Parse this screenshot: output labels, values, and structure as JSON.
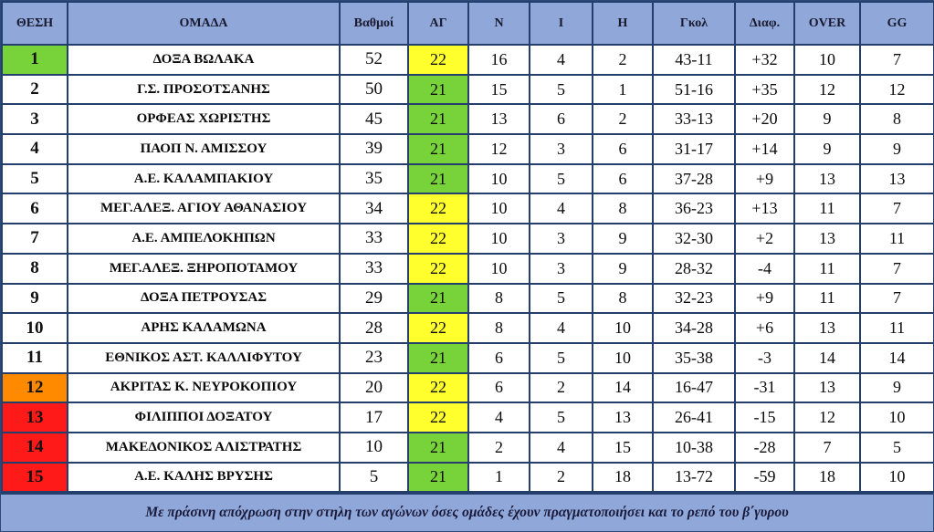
{
  "headers": {
    "pos": "ΘΕΣΗ",
    "team": "ΟΜΑΔΑ",
    "points": "Βαθμοί",
    "games": "ΑΓ",
    "wins": "Ν",
    "draws": "Ι",
    "losses": "Η",
    "goals": "Γκολ",
    "diff": "Διαφ.",
    "over": "OVER",
    "gg": "GG"
  },
  "colors": {
    "header_bg": "#8fa7d9",
    "games_yellow": "#ffff2e",
    "games_green": "#78d33a",
    "pos_green": "#78d33a",
    "pos_orange": "#ff8a00",
    "pos_red": "#ff1a1a"
  },
  "rows": [
    {
      "pos": "1",
      "team": "ΔΟΞΑ ΒΩΛΑΚΑ",
      "points": "52",
      "games": "22",
      "wins": "16",
      "draws": "4",
      "losses": "2",
      "goals": "43-11",
      "diff": "+32",
      "over": "10",
      "gg": "7",
      "games_color": "yellow",
      "pos_color": "green"
    },
    {
      "pos": "2",
      "team": "Γ.Σ. ΠΡΟΣΟΤΣΑΝΗΣ",
      "points": "50",
      "games": "21",
      "wins": "15",
      "draws": "5",
      "losses": "1",
      "goals": "51-16",
      "diff": "+35",
      "over": "12",
      "gg": "12",
      "games_color": "green",
      "pos_color": ""
    },
    {
      "pos": "3",
      "team": "ΟΡΦΕΑΣ ΧΩΡΙΣΤΗΣ",
      "points": "45",
      "games": "21",
      "wins": "13",
      "draws": "6",
      "losses": "2",
      "goals": "33-13",
      "diff": "+20",
      "over": "9",
      "gg": "8",
      "games_color": "green",
      "pos_color": ""
    },
    {
      "pos": "4",
      "team": "ΠΑΟΠ Ν. ΑΜΙΣΣΟΥ",
      "points": "39",
      "games": "21",
      "wins": "12",
      "draws": "3",
      "losses": "6",
      "goals": "31-17",
      "diff": "+14",
      "over": "9",
      "gg": "9",
      "games_color": "green",
      "pos_color": ""
    },
    {
      "pos": "5",
      "team": "Α.Ε. ΚΑΛΑΜΠΑΚΙΟΥ",
      "points": "35",
      "games": "21",
      "wins": "10",
      "draws": "5",
      "losses": "6",
      "goals": "37-28",
      "diff": "+9",
      "over": "13",
      "gg": "13",
      "games_color": "green",
      "pos_color": ""
    },
    {
      "pos": "6",
      "team": "ΜΕΓ.ΑΛΕΞ. ΑΓΙΟΥ ΑΘΑΝΑΣΙΟΥ",
      "points": "34",
      "games": "22",
      "wins": "10",
      "draws": "4",
      "losses": "8",
      "goals": "36-23",
      "diff": "+13",
      "over": "11",
      "gg": "7",
      "games_color": "yellow",
      "pos_color": ""
    },
    {
      "pos": "7",
      "team": "Α.Ε. ΑΜΠΕΛΟΚΗΠΩΝ",
      "points": "33",
      "games": "22",
      "wins": "10",
      "draws": "3",
      "losses": "9",
      "goals": "32-30",
      "diff": "+2",
      "over": "13",
      "gg": "11",
      "games_color": "yellow",
      "pos_color": ""
    },
    {
      "pos": "8",
      "team": "ΜΕΓ.ΑΛΕΞ. ΞΗΡΟΠΟΤΑΜΟΥ",
      "points": "33",
      "games": "22",
      "wins": "10",
      "draws": "3",
      "losses": "9",
      "goals": "28-32",
      "diff": "-4",
      "over": "11",
      "gg": "7",
      "games_color": "yellow",
      "pos_color": ""
    },
    {
      "pos": "9",
      "team": "ΔΟΞΑ ΠΕΤΡΟΥΣΑΣ",
      "points": "29",
      "games": "21",
      "wins": "8",
      "draws": "5",
      "losses": "8",
      "goals": "32-23",
      "diff": "+9",
      "over": "11",
      "gg": "7",
      "games_color": "green",
      "pos_color": ""
    },
    {
      "pos": "10",
      "team": "ΑΡΗΣ ΚΑΛΑΜΩΝΑ",
      "points": "28",
      "games": "22",
      "wins": "8",
      "draws": "4",
      "losses": "10",
      "goals": "34-28",
      "diff": "+6",
      "over": "13",
      "gg": "11",
      "games_color": "yellow",
      "pos_color": ""
    },
    {
      "pos": "11",
      "team": "ΕΘΝΙΚΟΣ ΑΣΤ. ΚΑΛΛΙΦΥΤΟΥ",
      "points": "23",
      "games": "21",
      "wins": "6",
      "draws": "5",
      "losses": "10",
      "goals": "35-38",
      "diff": "-3",
      "over": "14",
      "gg": "14",
      "games_color": "green",
      "pos_color": ""
    },
    {
      "pos": "12",
      "team": "ΑΚΡΙΤΑΣ Κ. ΝΕΥΡΟΚΟΠΙΟΥ",
      "points": "20",
      "games": "22",
      "wins": "6",
      "draws": "2",
      "losses": "14",
      "goals": "16-47",
      "diff": "-31",
      "over": "13",
      "gg": "9",
      "games_color": "yellow",
      "pos_color": "orange"
    },
    {
      "pos": "13",
      "team": "ΦΙΛΙΠΠΟΙ ΔΟΞΑΤΟΥ",
      "points": "17",
      "games": "22",
      "wins": "4",
      "draws": "5",
      "losses": "13",
      "goals": "26-41",
      "diff": "-15",
      "over": "12",
      "gg": "10",
      "games_color": "yellow",
      "pos_color": "red"
    },
    {
      "pos": "14",
      "team": "ΜΑΚΕΔΟΝΙΚΟΣ ΑΛΙΣΤΡΑΤΗΣ",
      "points": "10",
      "games": "21",
      "wins": "2",
      "draws": "4",
      "losses": "15",
      "goals": "10-38",
      "diff": "-28",
      "over": "7",
      "gg": "5",
      "games_color": "green",
      "pos_color": "red"
    },
    {
      "pos": "15",
      "team": "Α.Ε. ΚΑΛΗΣ ΒΡΥΣΗΣ",
      "points": "5",
      "games": "21",
      "wins": "1",
      "draws": "2",
      "losses": "18",
      "goals": "13-72",
      "diff": "-59",
      "over": "18",
      "gg": "10",
      "games_color": "green",
      "pos_color": "red"
    }
  ],
  "footer_note": "Με πράσινη  απόχρωση στην στηλη των αγώνων όσες ομάδες έχουν πραγματοποιήσει και το ρεπό του β΄γυρου"
}
